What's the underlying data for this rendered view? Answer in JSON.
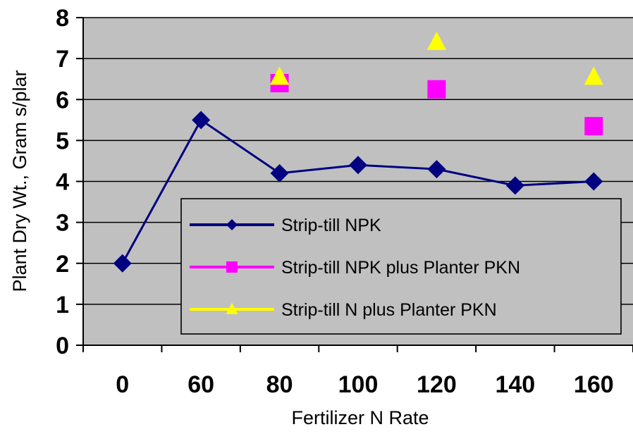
{
  "chart_data": {
    "type": "line",
    "xlabel": "Fertilizer N Rate",
    "ylabel": "Plant Dry Wt., Gram s/plar",
    "ylim": [
      0,
      8
    ],
    "yticks": [
      "0",
      "1",
      "2",
      "3",
      "4",
      "5",
      "6",
      "7",
      "8"
    ],
    "categories": [
      "0",
      "60",
      "80",
      "100",
      "120",
      "140",
      "160"
    ],
    "grid": true,
    "legend_position": "bottom-right",
    "colors": {
      "plot_background": "#c0c0c0",
      "gridline": "#000000"
    },
    "series": [
      {
        "name": "Strip-till NPK",
        "marker": "diamond",
        "line": true,
        "color": "#000080",
        "values": [
          2.0,
          5.5,
          4.2,
          4.4,
          4.3,
          3.9,
          4.0
        ]
      },
      {
        "name": "Strip-till NPK plus Planter PKN",
        "marker": "square",
        "line": false,
        "color": "#ff00ff",
        "values": [
          null,
          null,
          6.4,
          null,
          6.25,
          null,
          5.35
        ]
      },
      {
        "name": "Strip-till N plus Planter PKN",
        "marker": "triangle",
        "line": false,
        "color": "#ffff00",
        "values": [
          null,
          null,
          6.55,
          null,
          7.4,
          null,
          6.55
        ]
      }
    ]
  }
}
